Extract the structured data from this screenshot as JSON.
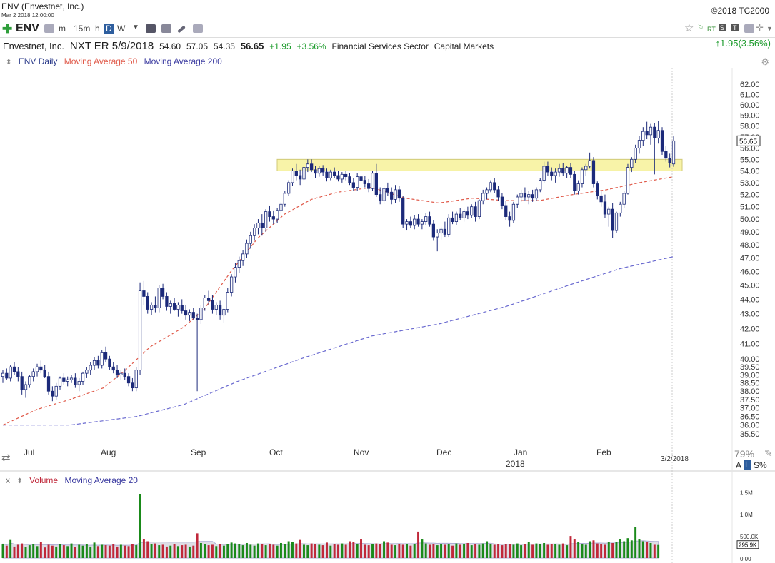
{
  "header": {
    "title": "ENV (Envestnet, Inc.)",
    "datetime": "Mar 2 2018 12:00:00",
    "copyright": "©2018 TC2000"
  },
  "toolbar": {
    "symbol": "ENV",
    "intervals": [
      "m",
      "15m",
      "h",
      "D",
      "W"
    ],
    "selected_interval": "D",
    "badges": [
      "RT",
      "S",
      "T"
    ]
  },
  "quote": {
    "company": "Envestnet, Inc.",
    "next_earnings": "NXT ER 5/9/2018",
    "open": "54.60",
    "high": "57.05",
    "low": "54.35",
    "last": "56.65",
    "change": "+1.95",
    "change_pct": "+3.56%",
    "sector": "Financial Services Sector",
    "industry": "Capital Markets",
    "right_change": "1.95(3.56%)"
  },
  "legend": {
    "price_series": "ENV Daily",
    "ma50": "Moving Average 50",
    "ma200": "Moving Average 200",
    "volume": "Volume",
    "vol_ma": "Moving Average 20",
    "close_marker": "x"
  },
  "footer": {
    "zoom": "79%",
    "scale_toggle": [
      "A",
      "L",
      "S%"
    ],
    "current_date": "3/2/2018",
    "year_label": "2018"
  },
  "colors": {
    "up": "#1c2a7a",
    "down": "#1c2a7a",
    "ma50": "#e05a4a",
    "ma200": "#6a6ad0",
    "highlight": "#f7f29a",
    "vol_up": "#1a8a1a",
    "vol_down": "#c0283a"
  },
  "chart_data": {
    "type": "candlestick",
    "title": "ENV Daily",
    "y_ticks": [
      35.5,
      36.0,
      36.5,
      37.0,
      37.5,
      38.0,
      38.5,
      39.0,
      39.5,
      40.0,
      41.0,
      42.0,
      43.0,
      44.0,
      45.0,
      46.0,
      47.0,
      48.0,
      49.0,
      50.0,
      51.0,
      52.0,
      53.0,
      54.0,
      55.0,
      56.0,
      57.0,
      58.0,
      59.0,
      60.0,
      61.0,
      62.0
    ],
    "y_scale": "log",
    "ylim": [
      35.3,
      62.5
    ],
    "x_labels": [
      "Jul",
      "Aug",
      "Sep",
      "Oct",
      "Nov",
      "Dec",
      "Jan",
      "Feb"
    ],
    "last_price_label": "56.65",
    "highlight_zone": {
      "low": 54.0,
      "high": 55.0,
      "from": "2017-10-02",
      "to": "2018-03-02"
    },
    "candles": [
      [
        38.9,
        39.3,
        38.5,
        39.1
      ],
      [
        39.1,
        39.4,
        38.7,
        38.8
      ],
      [
        38.8,
        39.6,
        38.6,
        39.5
      ],
      [
        39.5,
        39.8,
        39.0,
        39.2
      ],
      [
        39.2,
        39.5,
        38.6,
        38.9
      ],
      [
        38.9,
        39.2,
        37.8,
        38.1
      ],
      [
        38.1,
        38.6,
        37.6,
        38.4
      ],
      [
        38.4,
        39.0,
        38.2,
        38.9
      ],
      [
        38.9,
        39.4,
        38.6,
        39.2
      ],
      [
        39.2,
        39.7,
        38.9,
        39.5
      ],
      [
        39.5,
        39.9,
        39.1,
        39.3
      ],
      [
        39.3,
        39.6,
        38.8,
        38.9
      ],
      [
        38.9,
        39.2,
        37.8,
        38.0
      ],
      [
        38.0,
        38.3,
        37.4,
        37.7
      ],
      [
        37.7,
        38.5,
        37.5,
        38.3
      ],
      [
        38.3,
        38.9,
        38.1,
        38.8
      ],
      [
        38.8,
        39.1,
        38.4,
        38.6
      ],
      [
        38.6,
        38.9,
        38.3,
        38.7
      ],
      [
        38.7,
        39.0,
        38.5,
        38.8
      ],
      [
        38.8,
        39.1,
        38.2,
        38.4
      ],
      [
        38.4,
        38.8,
        38.0,
        38.6
      ],
      [
        38.6,
        39.2,
        38.4,
        39.1
      ],
      [
        39.1,
        39.5,
        38.8,
        39.3
      ],
      [
        39.3,
        39.8,
        39.0,
        39.6
      ],
      [
        39.6,
        40.1,
        39.3,
        39.9
      ],
      [
        39.9,
        40.2,
        39.4,
        39.6
      ],
      [
        39.6,
        40.6,
        39.4,
        40.4
      ],
      [
        40.4,
        40.8,
        39.8,
        40.0
      ],
      [
        40.0,
        40.2,
        39.3,
        39.5
      ],
      [
        39.5,
        39.8,
        39.1,
        39.3
      ],
      [
        39.3,
        39.6,
        38.8,
        39.0
      ],
      [
        39.0,
        39.3,
        38.7,
        39.1
      ],
      [
        39.1,
        39.4,
        38.7,
        38.9
      ],
      [
        38.9,
        39.1,
        38.3,
        38.5
      ],
      [
        38.5,
        38.8,
        38.0,
        38.2
      ],
      [
        38.2,
        39.5,
        38.0,
        39.3
      ],
      [
        39.3,
        45.2,
        39.0,
        44.6
      ],
      [
        44.6,
        45.3,
        43.6,
        44.2
      ],
      [
        44.2,
        44.5,
        43.0,
        43.3
      ],
      [
        43.3,
        43.8,
        42.9,
        43.6
      ],
      [
        43.6,
        44.2,
        43.1,
        43.4
      ],
      [
        43.4,
        45.0,
        43.1,
        44.8
      ],
      [
        44.8,
        45.1,
        44.0,
        44.2
      ],
      [
        44.2,
        44.5,
        43.2,
        43.5
      ],
      [
        43.5,
        43.9,
        43.0,
        43.7
      ],
      [
        43.7,
        44.1,
        43.2,
        43.3
      ],
      [
        43.3,
        43.8,
        42.8,
        43.6
      ],
      [
        43.6,
        44.0,
        43.0,
        43.2
      ],
      [
        43.2,
        43.6,
        42.6,
        42.9
      ],
      [
        42.9,
        43.3,
        42.5,
        43.1
      ],
      [
        43.1,
        43.4,
        42.6,
        42.7
      ],
      [
        42.7,
        43.0,
        38.0,
        42.6
      ],
      [
        42.6,
        43.6,
        42.3,
        43.4
      ],
      [
        43.4,
        44.3,
        43.2,
        44.1
      ],
      [
        44.1,
        44.6,
        43.6,
        43.9
      ],
      [
        43.9,
        44.3,
        43.0,
        43.3
      ],
      [
        43.3,
        43.8,
        42.9,
        43.6
      ],
      [
        43.6,
        43.9,
        42.6,
        42.9
      ],
      [
        42.9,
        43.4,
        42.4,
        43.3
      ],
      [
        43.3,
        44.8,
        43.1,
        44.5
      ],
      [
        44.5,
        45.8,
        44.2,
        45.6
      ],
      [
        45.6,
        46.6,
        45.2,
        46.3
      ],
      [
        46.3,
        47.1,
        45.9,
        46.8
      ],
      [
        46.8,
        47.6,
        46.4,
        47.3
      ],
      [
        47.3,
        48.4,
        47.0,
        48.1
      ],
      [
        48.1,
        49.0,
        47.7,
        48.7
      ],
      [
        48.7,
        49.6,
        48.3,
        49.3
      ],
      [
        49.3,
        50.0,
        48.8,
        49.7
      ],
      [
        49.7,
        50.4,
        48.7,
        49.3
      ],
      [
        49.3,
        50.8,
        49.0,
        50.6
      ],
      [
        50.6,
        51.1,
        49.8,
        50.2
      ],
      [
        50.2,
        50.7,
        49.6,
        50.0
      ],
      [
        50.0,
        50.9,
        49.7,
        50.7
      ],
      [
        50.7,
        51.4,
        50.3,
        51.2
      ],
      [
        51.2,
        52.3,
        51.0,
        52.1
      ],
      [
        52.1,
        53.2,
        51.9,
        53.0
      ],
      [
        53.0,
        54.2,
        52.7,
        54.0
      ],
      [
        54.0,
        54.6,
        53.2,
        53.6
      ],
      [
        53.6,
        54.1,
        52.8,
        53.3
      ],
      [
        53.3,
        54.5,
        53.1,
        54.3
      ],
      [
        54.3,
        55.0,
        53.9,
        54.6
      ],
      [
        54.6,
        55.0,
        53.9,
        54.1
      ],
      [
        54.1,
        54.4,
        53.4,
        53.8
      ],
      [
        53.8,
        54.4,
        53.5,
        54.2
      ],
      [
        54.2,
        54.5,
        53.6,
        53.9
      ],
      [
        53.9,
        54.2,
        53.1,
        53.4
      ],
      [
        53.4,
        54.1,
        53.2,
        53.9
      ],
      [
        53.9,
        54.3,
        53.4,
        53.6
      ],
      [
        53.6,
        54.0,
        53.1,
        53.3
      ],
      [
        53.3,
        53.9,
        53.0,
        53.7
      ],
      [
        53.7,
        54.0,
        53.2,
        53.5
      ],
      [
        53.5,
        53.8,
        52.8,
        53.0
      ],
      [
        53.0,
        53.4,
        52.3,
        52.6
      ],
      [
        52.6,
        53.8,
        52.3,
        53.5
      ],
      [
        53.5,
        53.9,
        53.0,
        53.2
      ],
      [
        53.2,
        53.6,
        52.6,
        52.9
      ],
      [
        52.9,
        53.3,
        52.2,
        52.5
      ],
      [
        52.5,
        54.0,
        52.3,
        53.8
      ],
      [
        53.8,
        54.6,
        51.8,
        52.0
      ],
      [
        52.0,
        52.6,
        51.2,
        51.5
      ],
      [
        51.5,
        52.8,
        51.2,
        52.5
      ],
      [
        52.5,
        53.0,
        51.9,
        52.2
      ],
      [
        52.2,
        52.6,
        51.2,
        51.6
      ],
      [
        51.6,
        52.8,
        51.3,
        52.4
      ],
      [
        52.4,
        52.7,
        51.4,
        51.7
      ],
      [
        51.7,
        51.9,
        49.3,
        49.6
      ],
      [
        49.6,
        50.0,
        49.1,
        49.8
      ],
      [
        49.8,
        50.2,
        49.3,
        49.5
      ],
      [
        49.5,
        50.3,
        49.2,
        50.0
      ],
      [
        50.0,
        50.4,
        49.4,
        49.6
      ],
      [
        49.6,
        50.0,
        49.2,
        49.8
      ],
      [
        49.8,
        50.5,
        49.5,
        50.2
      ],
      [
        50.2,
        50.6,
        49.4,
        49.6
      ],
      [
        49.6,
        49.9,
        48.3,
        48.6
      ],
      [
        48.6,
        49.2,
        47.5,
        48.9
      ],
      [
        48.9,
        49.4,
        48.4,
        49.2
      ],
      [
        49.2,
        49.8,
        48.6,
        48.8
      ],
      [
        48.8,
        50.4,
        48.6,
        50.1
      ],
      [
        50.1,
        50.6,
        49.6,
        49.8
      ],
      [
        49.8,
        50.6,
        49.5,
        50.4
      ],
      [
        50.4,
        50.9,
        49.9,
        50.1
      ],
      [
        50.1,
        50.8,
        49.8,
        50.6
      ],
      [
        50.6,
        51.0,
        50.0,
        50.3
      ],
      [
        50.3,
        51.2,
        50.1,
        51.0
      ],
      [
        51.0,
        51.4,
        49.8,
        50.2
      ],
      [
        50.2,
        51.6,
        50.0,
        51.5
      ],
      [
        51.5,
        52.4,
        51.2,
        52.1
      ],
      [
        52.1,
        52.6,
        51.6,
        52.4
      ],
      [
        52.4,
        53.2,
        52.2,
        53.0
      ],
      [
        53.0,
        53.4,
        52.1,
        52.4
      ],
      [
        52.4,
        52.7,
        51.5,
        51.8
      ],
      [
        51.8,
        52.1,
        50.8,
        51.1
      ],
      [
        51.1,
        51.5,
        49.9,
        50.2
      ],
      [
        50.2,
        50.6,
        49.4,
        49.9
      ],
      [
        49.9,
        51.4,
        49.7,
        51.2
      ],
      [
        51.2,
        52.0,
        50.9,
        51.8
      ],
      [
        51.8,
        52.4,
        51.4,
        52.1
      ],
      [
        52.1,
        52.6,
        51.5,
        51.8
      ],
      [
        51.8,
        52.3,
        51.2,
        52.0
      ],
      [
        52.0,
        52.4,
        51.4,
        51.7
      ],
      [
        51.7,
        52.6,
        51.5,
        52.4
      ],
      [
        52.4,
        53.4,
        52.2,
        53.2
      ],
      [
        53.2,
        54.8,
        53.0,
        54.4
      ],
      [
        54.4,
        54.8,
        53.6,
        53.9
      ],
      [
        53.9,
        54.3,
        53.2,
        53.6
      ],
      [
        53.6,
        54.2,
        53.0,
        53.9
      ],
      [
        53.9,
        54.6,
        53.5,
        54.2
      ],
      [
        54.2,
        54.7,
        53.6,
        53.8
      ],
      [
        53.8,
        54.4,
        53.4,
        54.3
      ],
      [
        54.3,
        54.7,
        53.4,
        53.7
      ],
      [
        53.7,
        54.0,
        52.0,
        52.3
      ],
      [
        52.3,
        53.2,
        52.0,
        52.9
      ],
      [
        52.9,
        54.3,
        52.6,
        54.1
      ],
      [
        54.1,
        54.6,
        53.6,
        54.4
      ],
      [
        54.4,
        55.6,
        54.2,
        54.9
      ],
      [
        54.9,
        55.2,
        52.6,
        52.9
      ],
      [
        52.9,
        53.1,
        51.6,
        51.9
      ],
      [
        51.9,
        52.3,
        51.0,
        51.4
      ],
      [
        51.4,
        52.0,
        50.1,
        50.4
      ],
      [
        50.4,
        51.0,
        49.4,
        50.8
      ],
      [
        50.8,
        51.3,
        48.5,
        49.1
      ],
      [
        49.1,
        50.6,
        48.9,
        50.5
      ],
      [
        50.5,
        51.4,
        50.2,
        51.2
      ],
      [
        51.2,
        52.3,
        50.9,
        52.1
      ],
      [
        52.1,
        54.6,
        52.0,
        54.3
      ],
      [
        54.3,
        55.2,
        53.9,
        55.0
      ],
      [
        55.0,
        56.3,
        54.7,
        56.0
      ],
      [
        56.0,
        57.1,
        55.5,
        56.7
      ],
      [
        56.7,
        57.9,
        56.2,
        57.5
      ],
      [
        57.5,
        58.4,
        56.8,
        57.2
      ],
      [
        57.2,
        58.2,
        56.3,
        57.9
      ],
      [
        57.9,
        58.3,
        53.7,
        56.9
      ],
      [
        56.9,
        58.5,
        56.4,
        57.6
      ],
      [
        57.6,
        57.9,
        55.4,
        55.7
      ],
      [
        55.7,
        56.2,
        54.8,
        55.1
      ],
      [
        55.1,
        55.5,
        54.3,
        54.7
      ],
      [
        54.6,
        57.05,
        54.35,
        56.65
      ]
    ],
    "ma50": [
      [
        0,
        36.0
      ],
      [
        0.05,
        36.9
      ],
      [
        0.1,
        37.5
      ],
      [
        0.15,
        38.2
      ],
      [
        0.18,
        39.2
      ],
      [
        0.22,
        40.8
      ],
      [
        0.27,
        42.1
      ],
      [
        0.3,
        43.3
      ],
      [
        0.34,
        46.0
      ],
      [
        0.38,
        48.5
      ],
      [
        0.42,
        50.4
      ],
      [
        0.46,
        51.6
      ],
      [
        0.5,
        52.2
      ],
      [
        0.55,
        52.6
      ],
      [
        0.6,
        51.7
      ],
      [
        0.65,
        51.3
      ],
      [
        0.7,
        51.7
      ],
      [
        0.75,
        51.5
      ],
      [
        0.8,
        51.5
      ],
      [
        0.85,
        52.0
      ],
      [
        0.9,
        52.4
      ],
      [
        0.95,
        53.0
      ],
      [
        1.0,
        53.5
      ]
    ],
    "ma200": [
      [
        0,
        36.0
      ],
      [
        0.1,
        36.0
      ],
      [
        0.2,
        36.5
      ],
      [
        0.27,
        37.2
      ],
      [
        0.35,
        38.6
      ],
      [
        0.45,
        40.1
      ],
      [
        0.55,
        41.5
      ],
      [
        0.65,
        42.3
      ],
      [
        0.75,
        43.5
      ],
      [
        0.85,
        45.1
      ],
      [
        0.92,
        46.2
      ],
      [
        1.0,
        47.1
      ]
    ],
    "volume": {
      "y_ticks_labels": [
        "1.5M",
        "1.0M",
        "500.0K",
        "0.00"
      ],
      "y_ticks": [
        1500,
        1000,
        500,
        0
      ],
      "last_label": "295.9K",
      "values": [
        320,
        280,
        410,
        260,
        300,
        330,
        250,
        290,
        310,
        270,
        360,
        240,
        300,
        280,
        260,
        310,
        290,
        270,
        330,
        250,
        300,
        280,
        320,
        260,
        350,
        270,
        300,
        290,
        280,
        310,
        260,
        300,
        280,
        270,
        320,
        290,
        1450,
        420,
        380,
        310,
        330,
        290,
        300,
        260,
        280,
        310,
        270,
        290,
        300,
        260,
        280,
        560,
        340,
        310,
        290,
        300,
        270,
        320,
        280,
        310,
        350,
        330,
        310,
        290,
        340,
        300,
        280,
        330,
        310,
        290,
        320,
        300,
        280,
        340,
        310,
        380,
        360,
        330,
        410,
        300,
        290,
        330,
        310,
        300,
        290,
        350,
        280,
        310,
        300,
        330,
        300,
        380,
        360,
        310,
        420,
        300,
        290,
        310,
        330,
        320,
        380,
        350,
        300,
        290,
        310,
        300,
        320,
        280,
        310,
        600,
        420,
        330,
        300,
        310,
        290,
        320,
        300,
        310,
        280,
        330,
        300,
        310,
        340,
        290,
        320,
        300,
        330,
        380,
        310,
        300,
        320,
        290,
        320,
        310,
        300,
        330,
        290,
        310,
        360,
        300,
        330,
        310,
        340,
        300,
        320,
        310,
        300,
        330,
        290,
        500,
        420,
        360,
        310,
        300,
        380,
        400,
        330,
        310,
        300,
        360,
        340,
        360,
        420,
        380,
        450,
        400,
        710,
        420,
        380,
        360,
        340,
        300,
        296
      ],
      "ma20": "smooth"
    }
  }
}
